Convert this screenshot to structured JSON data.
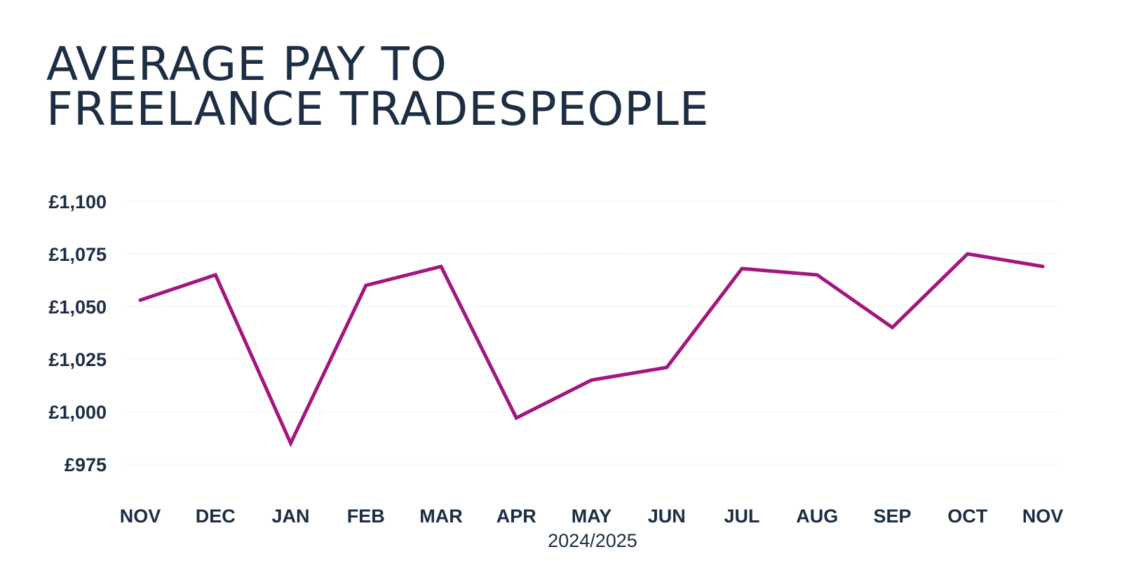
{
  "chart_data": {
    "type": "line",
    "title_lines": [
      "AVERAGE PAY TO",
      "FREELANCE TRADESPEOPLE"
    ],
    "xlabel": "2024/2025",
    "ylabel": "",
    "categories": [
      "NOV",
      "DEC",
      "JAN",
      "FEB",
      "MAR",
      "APR",
      "MAY",
      "JUN",
      "JUL",
      "AUG",
      "SEP",
      "OCT",
      "NOV"
    ],
    "y_ticks": [
      975,
      1000,
      1025,
      1050,
      1075,
      1100
    ],
    "y_tick_labels": [
      "£975",
      "£1,000",
      "£1,025",
      "£1,050",
      "£1,075",
      "£1,100"
    ],
    "ylim": [
      975,
      1100
    ],
    "grid": true,
    "legend": "none",
    "series": [
      {
        "values": [
          1053,
          1065,
          985,
          1060,
          1069,
          997,
          1015,
          1021,
          1068,
          1065,
          1040,
          1075,
          1069
        ],
        "color": "#a3157f"
      }
    ],
    "colors": {
      "text": "#1d2d44",
      "grid": "#e4e4e4",
      "line": "#a3157f"
    }
  }
}
